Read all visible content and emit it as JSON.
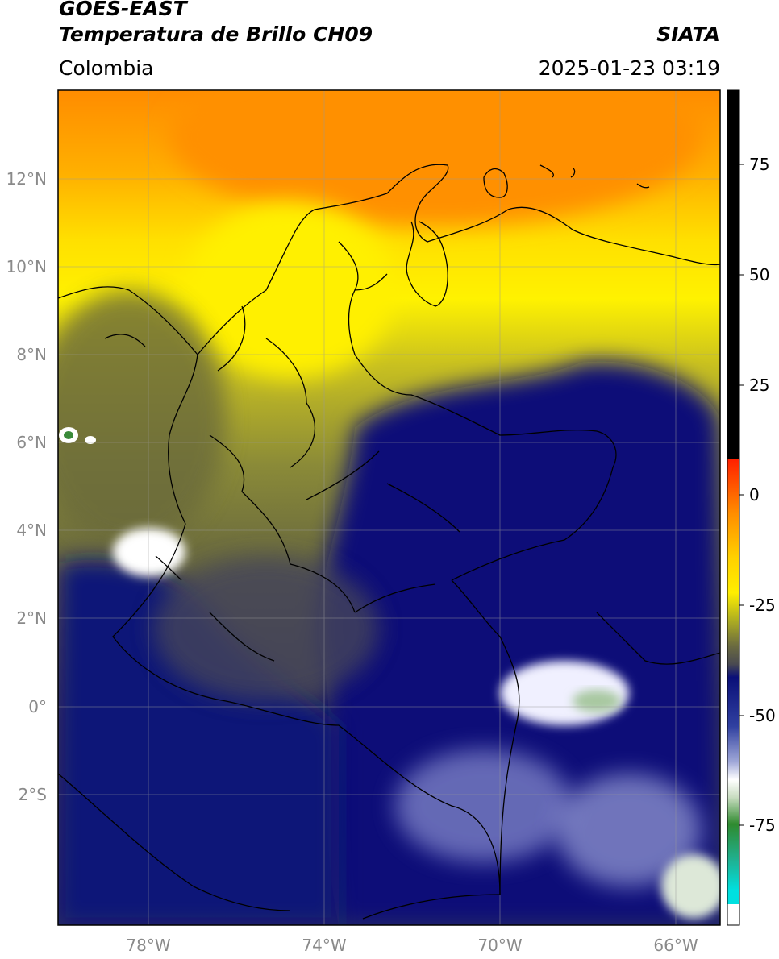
{
  "header": {
    "satellite": "GOES-EAST",
    "product": "Temperatura de Brillo CH09",
    "org": "SIATA",
    "region": "Colombia",
    "datetime": "2025-01-23 03:19"
  },
  "map": {
    "lat_ticks": [
      "12°N",
      "10°N",
      "8°N",
      "6°N",
      "4°N",
      "2°N",
      "0°",
      "2°S"
    ],
    "lon_ticks": [
      "78°W",
      "74°W",
      "70°W",
      "66°W"
    ]
  },
  "colorbar": {
    "ticks": [
      "75",
      "50",
      "25",
      "0",
      "-25",
      "-50",
      "-75"
    ],
    "colors": {
      "black": "#000000",
      "red": "#ff2000",
      "orange": "#ff8c00",
      "yellow": "#ffee00",
      "olive": "#5f5f30",
      "navy": "#0a0f78",
      "white": "#ffffff",
      "green": "#2f8a2f",
      "cyan": "#00e0e0"
    }
  }
}
